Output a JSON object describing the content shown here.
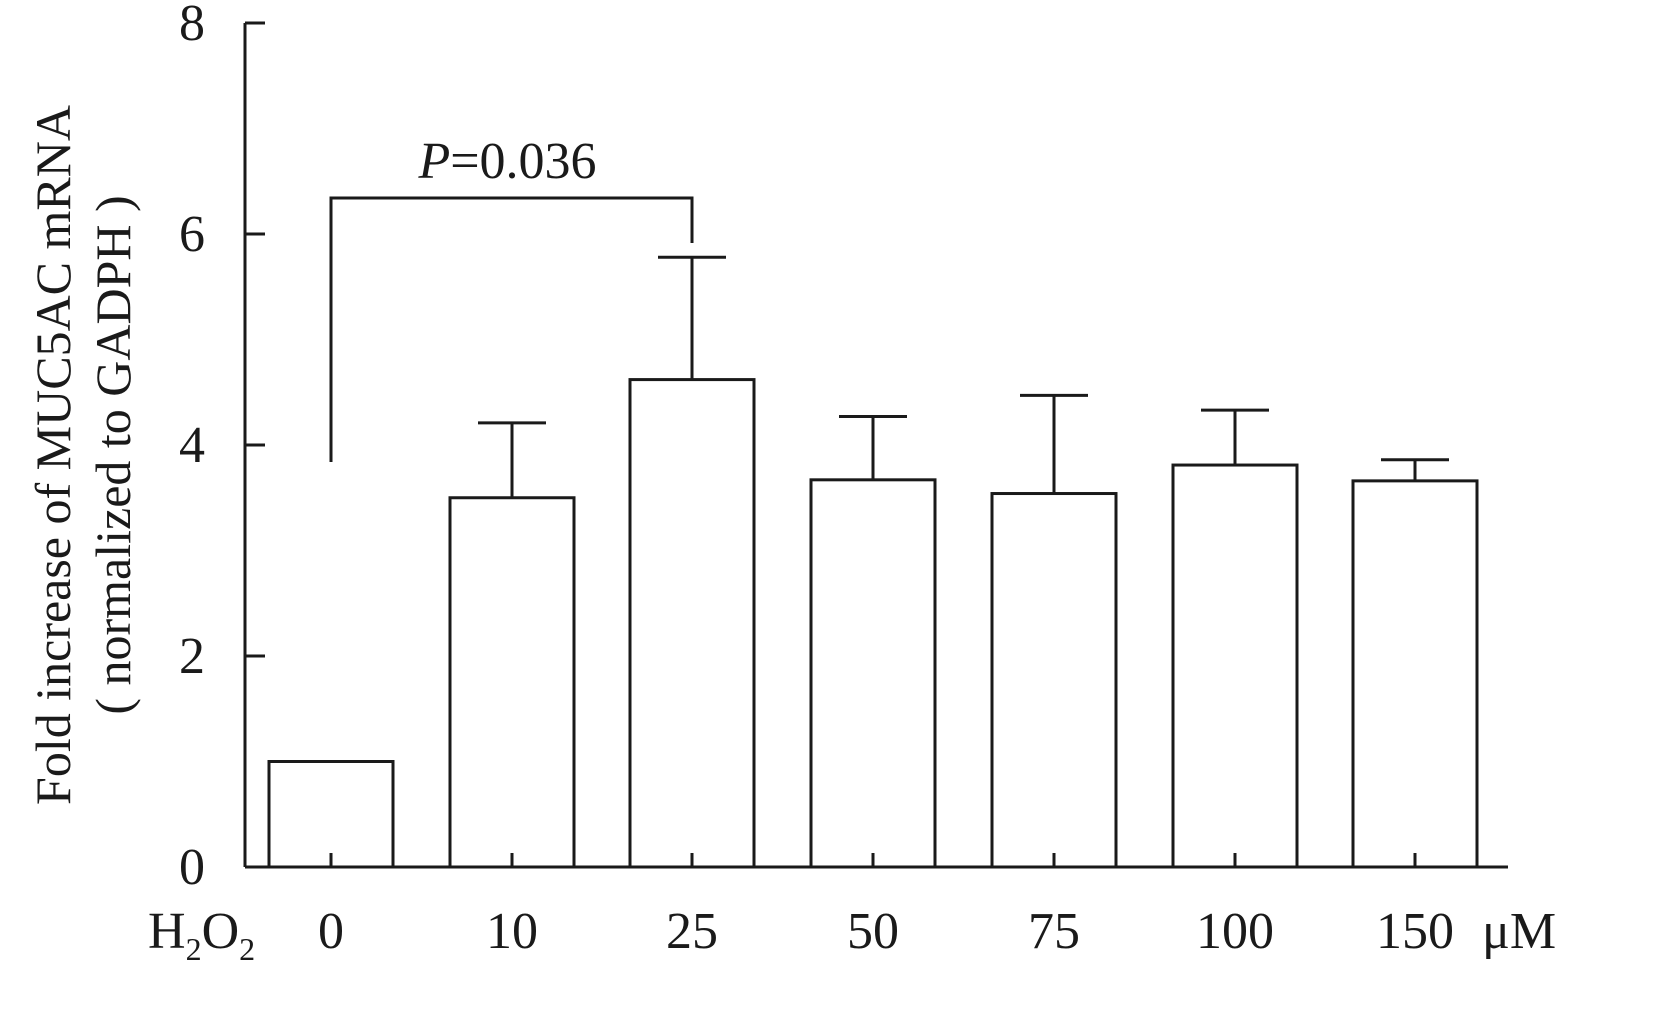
{
  "chart_data": {
    "type": "bar",
    "categories": [
      "0",
      "10",
      "25",
      "50",
      "75",
      "100",
      "150"
    ],
    "values": [
      1.0,
      3.5,
      4.62,
      3.67,
      3.54,
      3.81,
      3.66
    ],
    "error_upper": [
      1.0,
      4.21,
      5.78,
      4.27,
      4.47,
      4.33,
      3.86
    ],
    "ylabel_line1": "Fold increase of MUC5AC mRNA",
    "ylabel_line2": "( normalized to GADPH )",
    "x_prefix_main": "H",
    "x_prefix_sub1": "2",
    "x_prefix_mid": "O",
    "x_prefix_sub2": "2",
    "x_unit": "μM",
    "ylim": [
      0,
      8
    ],
    "yticks": [
      0,
      2,
      4,
      6,
      8
    ],
    "significance": {
      "from_category": "0",
      "to_category": "25",
      "p_italic": "P",
      "p_value": "=0.036",
      "bracket_level": 6.3
    },
    "bar_fill": "#ffffff",
    "line_color": "#1a1a1a"
  }
}
